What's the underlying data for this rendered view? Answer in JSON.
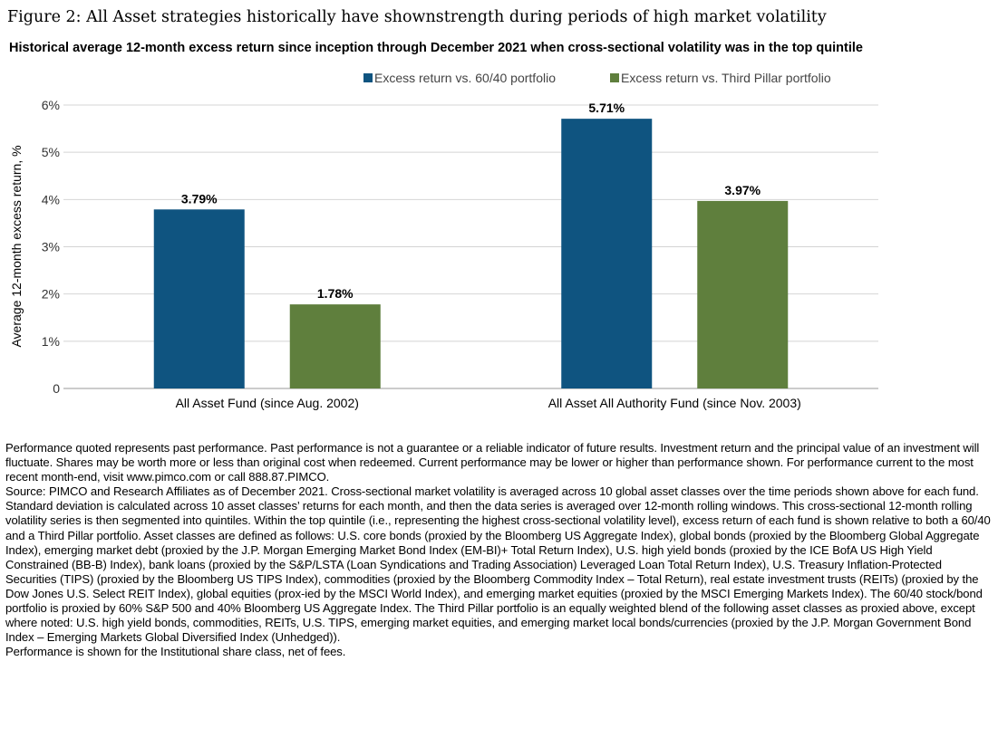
{
  "figure": {
    "title": "Figure 2: All Asset strategies historically have shownstrength during periods of high market volatility",
    "subtitle": "Historical average 12-month excess return since inception through  December 2021 when cross-sectional volatility was in the top quintile"
  },
  "chart_data": {
    "type": "bar",
    "categories": [
      "All Asset Fund (since Aug. 2002)",
      "All Asset All Authority Fund (since Nov. 2003)"
    ],
    "series": [
      {
        "name": "Excess return vs. 60/40 portfolio",
        "values": [
          3.79,
          5.71
        ],
        "labels": [
          "3.79%",
          "5.71%"
        ],
        "color": "#0f5480"
      },
      {
        "name": "Excess return vs. Third Pillar portfolio",
        "values": [
          1.78,
          3.97
        ],
        "labels": [
          "1.78%",
          "3.97%"
        ],
        "color": "#5f7f3d"
      }
    ],
    "ylabel": "Average 12-month excess return, %",
    "xlabel": "",
    "ylim": [
      0,
      6
    ],
    "yticks": [
      0,
      1,
      2,
      3,
      4,
      5,
      6
    ],
    "ytick_labels": [
      "0",
      "1%",
      "2%",
      "3%",
      "4%",
      "5%",
      "6%"
    ],
    "grid": true,
    "legend_position": "top-right"
  },
  "notes": {
    "disclaimer": "Performance quoted represents past performance. Past performance is not a guarantee or a reliable indicator of future results. Investment return and the principal value of an investment will fluctuate. Shares may be worth more or less than original cost when redeemed. Current performance may be lower or higher than performance shown. For performance current to the most recent month-end, visit www.pimco.com or call 888.87.PIMCO.",
    "source": "Source: PIMCO and Research Affiliates as of December 2021. Cross-sectional market volatility is averaged across 10 global asset classes over the time periods shown above for each fund. Standard deviation is calculated across 10 asset classes’ returns for each month, and then the data series is averaged over 12-month rolling windows. This cross-sectional 12-month rolling volatility series is then segmented into quintiles. Within the top quintile (i.e., representing the highest cross-sectional volatility level), excess return of each fund is shown relative to both a 60/40 and a Third Pillar portfolio. Asset classes are defined as follows: U.S. core bonds (proxied by the Bloomberg US Aggregate Index), global bonds (proxied by the Bloomberg Global Aggregate Index), emerging market debt (proxied by the J.P. Morgan Emerging Market Bond Index (EM-BI)+ Total Return Index), U.S. high yield bonds (proxied by the ICE BofA US High Yield Constrained (BB-B) Index), bank loans (proxied by the S&P/LSTA (Loan Syndications and Trading Association) Leveraged Loan Total Return Index), U.S. Treasury Inflation-Protected Securities (TIPS) (proxied by the Bloomberg US TIPS Index), commodities (proxied by the Bloomberg Commodity Index – Total Return), real estate investment trusts (REITs) (proxied by the Dow Jones U.S. Select REIT Index), global equities (prox-ied by the MSCI World Index), and emerging market equities (proxied by the MSCI Emerging Markets Index). The 60/40 stock/bond portfolio is proxied by 60% S&P 500 and 40% Bloomberg US Aggregate Index. The Third Pillar portfolio is an equally weighted blend of the following asset classes as proxied above, except where noted: U.S. high yield bonds, commodities, REITs, U.S. TIPS, emerging market equities, and emerging market local bonds/currencies (proxied by the J.P. Morgan Government Bond Index – Emerging Markets Global Diversified Index (Unhedged)).",
    "share_class": "Performance is shown for the Institutional share class, net of fees."
  }
}
